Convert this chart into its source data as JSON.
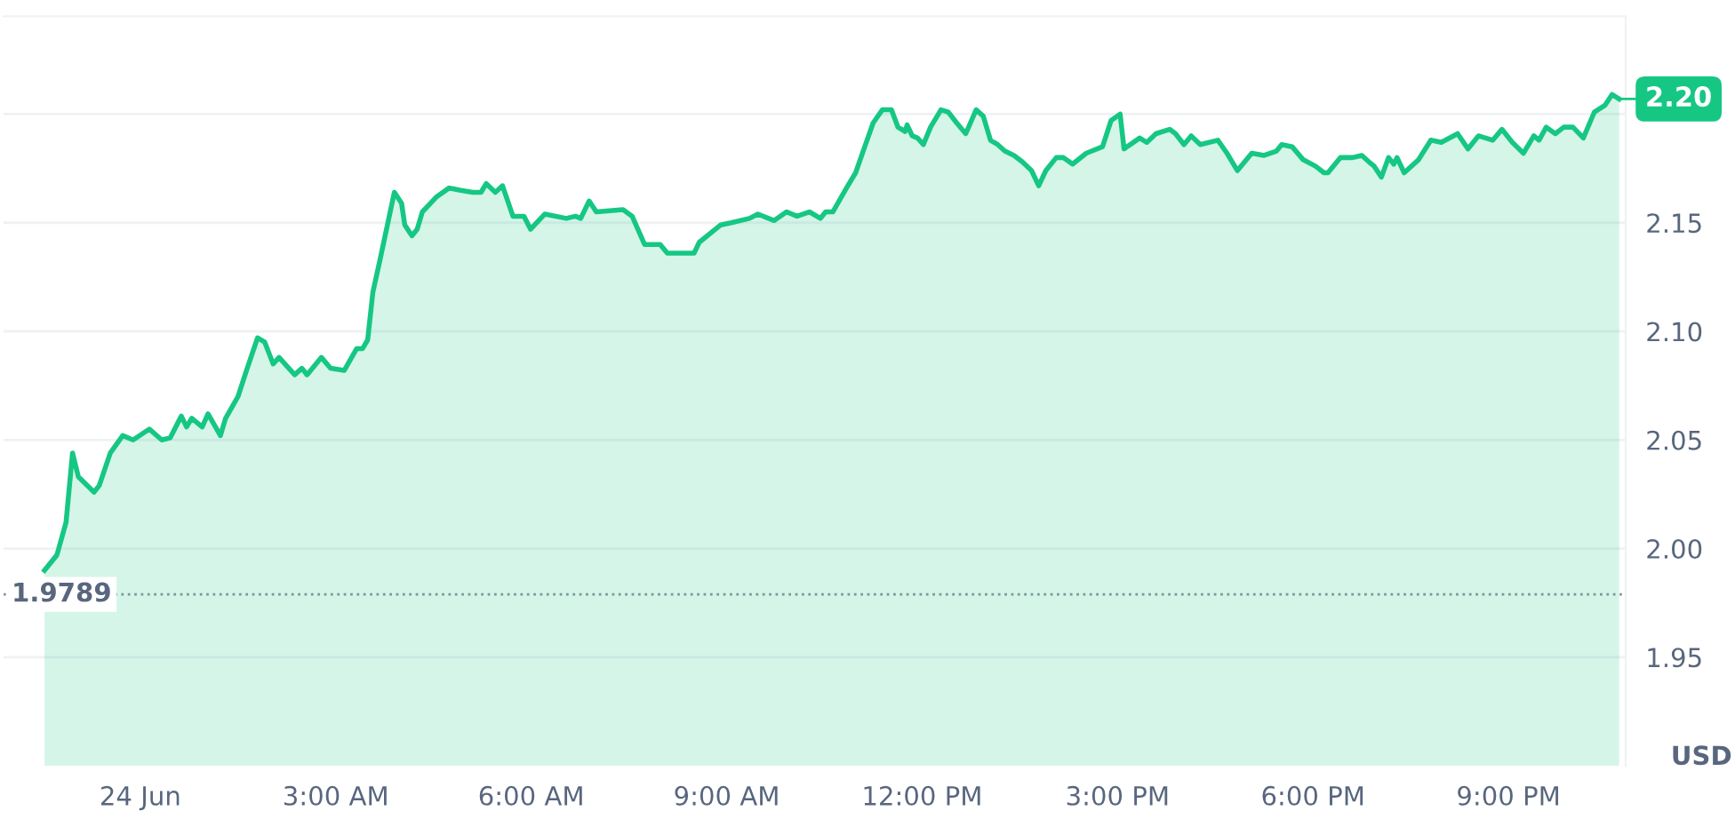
{
  "chart_data": {
    "type": "area",
    "ylabel": "USD",
    "x": [
      -1.47,
      -1.28,
      -1.14,
      -1.04,
      -0.95,
      -0.71,
      -0.63,
      -0.46,
      -0.27,
      -0.11,
      0.14,
      0.33,
      0.46,
      0.63,
      0.71,
      0.79,
      0.95,
      1.04,
      1.23,
      1.31,
      1.5,
      1.63,
      1.8,
      1.91,
      2.04,
      2.13,
      2.37,
      2.48,
      2.56,
      2.78,
      2.92,
      3.13,
      3.32,
      3.41,
      3.49,
      3.57,
      3.68,
      3.9,
      4.01,
      4.06,
      4.17,
      4.25,
      4.33,
      4.55,
      4.74,
      4.9,
      5.1,
      5.23,
      5.31,
      5.45,
      5.56,
      5.72,
      5.89,
      5.99,
      6.21,
      6.54,
      6.68,
      6.76,
      6.89,
      7.0,
      7.41,
      7.55,
      7.74,
      7.98,
      8.09,
      8.39,
      8.5,
      8.58,
      8.91,
      9.07,
      9.35,
      9.48,
      9.73,
      9.92,
      10.08,
      10.27,
      10.44,
      10.52,
      10.63,
      10.84,
      10.98,
      11.12,
      11.25,
      11.39,
      11.53,
      11.63,
      11.74,
      11.77,
      11.85,
      11.93,
      12.02,
      12.13,
      12.29,
      12.4,
      12.53,
      12.67,
      12.83,
      12.94,
      13.05,
      13.16,
      13.27,
      13.41,
      13.54,
      13.68,
      13.79,
      13.9,
      14.06,
      14.17,
      14.31,
      14.52,
      14.77,
      14.9,
      15.04,
      15.1,
      15.34,
      15.45,
      15.59,
      15.8,
      15.89,
      16.02,
      16.13,
      16.27,
      16.54,
      16.68,
      16.84,
      17.06,
      17.25,
      17.44,
      17.52,
      17.68,
      17.85,
      18.04,
      18.17,
      18.23,
      18.42,
      18.61,
      18.75,
      18.86,
      18.94,
      19.05,
      19.16,
      19.24,
      19.29,
      19.4,
      19.62,
      19.81,
      19.97,
      20.22,
      20.38,
      20.54,
      20.76,
      20.9,
      21.06,
      21.23,
      21.39,
      21.47,
      21.58,
      21.72,
      21.85,
      21.99,
      22.15,
      22.32,
      22.48,
      22.59,
      22.7
    ],
    "series": [
      {
        "color": "#16c784",
        "values": [
          1.99,
          1.997,
          2.012,
          2.044,
          2.033,
          2.026,
          2.029,
          2.044,
          2.052,
          2.05,
          2.055,
          2.05,
          2.051,
          2.061,
          2.056,
          2.06,
          2.056,
          2.062,
          2.052,
          2.06,
          2.07,
          2.082,
          2.097,
          2.095,
          2.085,
          2.088,
          2.08,
          2.083,
          2.08,
          2.088,
          2.083,
          2.082,
          2.092,
          2.092,
          2.096,
          2.118,
          2.133,
          2.164,
          2.159,
          2.149,
          2.144,
          2.147,
          2.155,
          2.162,
          2.166,
          2.165,
          2.164,
          2.164,
          2.168,
          2.164,
          2.167,
          2.153,
          2.153,
          2.147,
          2.154,
          2.152,
          2.153,
          2.152,
          2.16,
          2.155,
          2.156,
          2.153,
          2.14,
          2.14,
          2.136,
          2.136,
          2.136,
          2.141,
          2.149,
          2.15,
          2.152,
          2.154,
          2.151,
          2.155,
          2.153,
          2.155,
          2.152,
          2.155,
          2.155,
          2.166,
          2.173,
          2.185,
          2.196,
          2.202,
          2.202,
          2.194,
          2.192,
          2.195,
          2.19,
          2.189,
          2.186,
          2.194,
          2.202,
          2.201,
          2.196,
          2.191,
          2.202,
          2.199,
          2.188,
          2.186,
          2.183,
          2.181,
          2.178,
          2.174,
          2.167,
          2.174,
          2.18,
          2.18,
          2.177,
          2.182,
          2.185,
          2.197,
          2.2,
          2.184,
          2.189,
          2.187,
          2.191,
          2.193,
          2.191,
          2.186,
          2.19,
          2.186,
          2.188,
          2.182,
          2.174,
          2.182,
          2.181,
          2.183,
          2.186,
          2.185,
          2.179,
          2.176,
          2.173,
          2.173,
          2.18,
          2.18,
          2.181,
          2.178,
          2.176,
          2.171,
          2.18,
          2.177,
          2.18,
          2.173,
          2.179,
          2.188,
          2.187,
          2.191,
          2.184,
          2.19,
          2.188,
          2.193,
          2.187,
          2.182,
          2.19,
          2.188,
          2.194,
          2.191,
          2.194,
          2.194,
          2.189,
          2.201,
          2.204,
          2.209,
          2.207
        ]
      }
    ],
    "xlim": [
      -2.1,
      22.8
    ],
    "xticks": [
      {
        "value": 0,
        "label": "24 Jun"
      },
      {
        "value": 3,
        "label": "3:00 AM"
      },
      {
        "value": 6,
        "label": "6:00 AM"
      },
      {
        "value": 9,
        "label": "9:00 AM"
      },
      {
        "value": 12,
        "label": "12:00 PM"
      },
      {
        "value": 15,
        "label": "3:00 PM"
      },
      {
        "value": 18,
        "label": "6:00 PM"
      },
      {
        "value": 21,
        "label": "9:00 PM"
      }
    ],
    "ylim": [
      1.9,
      2.245
    ],
    "yticks": [
      {
        "value": 1.95,
        "label": "1.95"
      },
      {
        "value": 2.0,
        "label": "2.00"
      },
      {
        "value": 2.05,
        "label": "2.05"
      },
      {
        "value": 2.1,
        "label": "2.10"
      },
      {
        "value": 2.15,
        "label": "2.15"
      },
      {
        "value": 2.2,
        "label": null
      }
    ],
    "ref_lines": [
      {
        "axis": "y",
        "value": 1.9789,
        "label": "1.9789",
        "color": "#8a919e",
        "line_style": "dotted"
      }
    ],
    "annotations": [
      {
        "text": "2.20",
        "x": 22.7,
        "y": 2.207
      }
    ],
    "grid": "y",
    "legend": false,
    "line_style": "solid",
    "marker": "none"
  }
}
